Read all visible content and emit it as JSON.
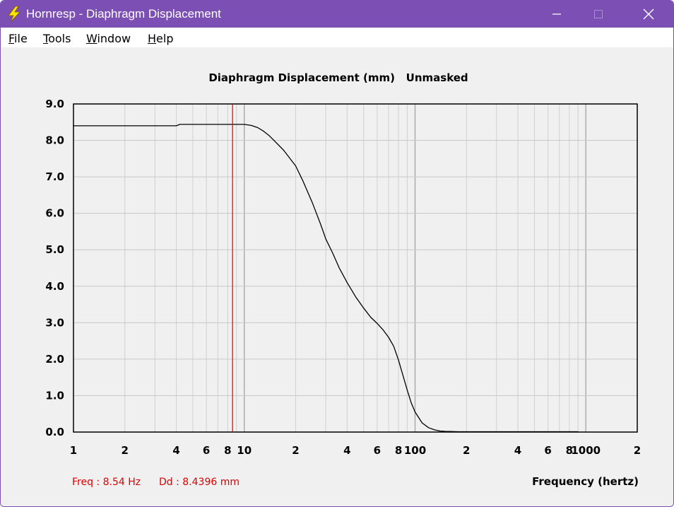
{
  "window": {
    "title": "Hornresp - Diaphragm Displacement",
    "icon": "lightning-bolt-icon",
    "controls": {
      "minimize": "minimize-icon",
      "maximize": "maximize-icon",
      "close": "close-icon"
    },
    "colors": {
      "titlebar": "#7b4fb3",
      "window_border": "#7a4fb0"
    }
  },
  "menu": [
    {
      "label": "File",
      "mnemonic": "F"
    },
    {
      "label": "Tools",
      "mnemonic": "T"
    },
    {
      "label": "Window",
      "mnemonic": "W"
    },
    {
      "label": "Help",
      "mnemonic": "H"
    }
  ],
  "chart_data": {
    "type": "line",
    "title": "Diaphragm Displacement (mm)   Unmasked",
    "xlabel": "Frequency (hertz)",
    "ylabel": "",
    "xscale": "log",
    "xlim": [
      1,
      2000
    ],
    "ylim": [
      0,
      9
    ],
    "grid": true,
    "yticks": [
      "0.0",
      "1.0",
      "2.0",
      "3.0",
      "4.0",
      "5.0",
      "6.0",
      "7.0",
      "8.0",
      "9.0"
    ],
    "xticks": [
      {
        "v": 1,
        "label": "1"
      },
      {
        "v": 2,
        "label": "2"
      },
      {
        "v": 4,
        "label": "4"
      },
      {
        "v": 6,
        "label": "6"
      },
      {
        "v": 8,
        "label": "8"
      },
      {
        "v": 10,
        "label": "10"
      },
      {
        "v": 20,
        "label": "2"
      },
      {
        "v": 40,
        "label": "4"
      },
      {
        "v": 60,
        "label": "6"
      },
      {
        "v": 80,
        "label": "8"
      },
      {
        "v": 100,
        "label": "100"
      },
      {
        "v": 200,
        "label": "2"
      },
      {
        "v": 400,
        "label": "4"
      },
      {
        "v": 600,
        "label": "6"
      },
      {
        "v": 800,
        "label": "8"
      },
      {
        "v": 1000,
        "label": "1000"
      },
      {
        "v": 2000,
        "label": "2"
      }
    ],
    "series": [
      {
        "color": "#000000",
        "x": [
          1,
          4,
          4.2,
          6,
          10,
          11,
          12,
          13,
          14,
          15,
          17,
          20,
          22,
          25,
          28,
          30,
          33,
          36,
          40,
          45,
          50,
          55,
          60,
          65,
          70,
          75,
          80,
          85,
          90,
          95,
          100,
          110,
          120,
          130,
          140,
          150,
          160,
          180,
          200,
          300,
          500,
          900
        ],
        "y": [
          8.4,
          8.4,
          8.44,
          8.44,
          8.44,
          8.41,
          8.35,
          8.25,
          8.13,
          7.99,
          7.73,
          7.3,
          6.9,
          6.3,
          5.7,
          5.3,
          4.9,
          4.5,
          4.1,
          3.7,
          3.4,
          3.15,
          2.98,
          2.8,
          2.6,
          2.35,
          1.97,
          1.55,
          1.15,
          0.8,
          0.55,
          0.25,
          0.12,
          0.06,
          0.03,
          0.02,
          0.015,
          0.01,
          0.01,
          0.01,
          0.01,
          0.01
        ]
      }
    ],
    "cursor": {
      "x": 8.54,
      "color": "#e00000"
    },
    "readout": {
      "freq": "Freq : 8.54 Hz",
      "dd": "Dd : 8.4396 mm",
      "color": "#e00000"
    }
  }
}
